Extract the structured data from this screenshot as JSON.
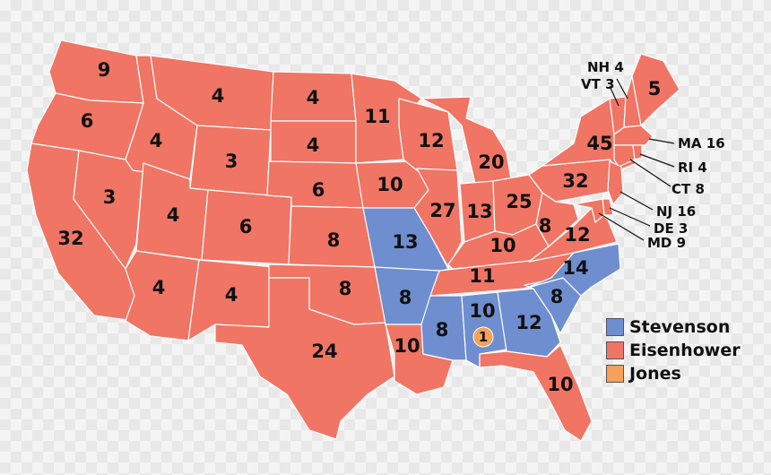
{
  "colors": {
    "stevenson": "#6f8ed0",
    "eisenhower": "#f07564",
    "jones": "#f6a05b"
  },
  "legend": [
    {
      "name": "Stevenson",
      "color": "#6f8ed0"
    },
    {
      "name": "Eisenhower",
      "color": "#f07564"
    },
    {
      "name": "Jones",
      "color": "#f6a05b"
    }
  ],
  "states": {
    "wa": "9",
    "or": "6",
    "ca": "32",
    "nv": "3",
    "id": "4",
    "mt": "4",
    "wy": "3",
    "ut": "4",
    "co": "6",
    "az": "4",
    "nm": "4",
    "nd": "4",
    "sd": "4",
    "ne": "6",
    "ks": "8",
    "ok": "8",
    "tx": "24",
    "mn": "11",
    "ia": "10",
    "mo": "13",
    "ar": "8",
    "la": "10",
    "wi": "12",
    "il": "27",
    "mi": "20",
    "in": "13",
    "oh": "25",
    "ky": "10",
    "tn": "11",
    "ms": "8",
    "al": "10",
    "ga": "12",
    "fl": "10",
    "sc": "8",
    "nc": "14",
    "va": "12",
    "wv": "8",
    "pa": "32",
    "ny": "45",
    "me": "5",
    "nh": "NH 4",
    "vt": "VT 3",
    "ma": "MA 16",
    "ri": "RI 4",
    "ct": "CT 8",
    "nj": "NJ 16",
    "de": "DE 3",
    "md": "MD 9",
    "al_jones": "1"
  }
}
